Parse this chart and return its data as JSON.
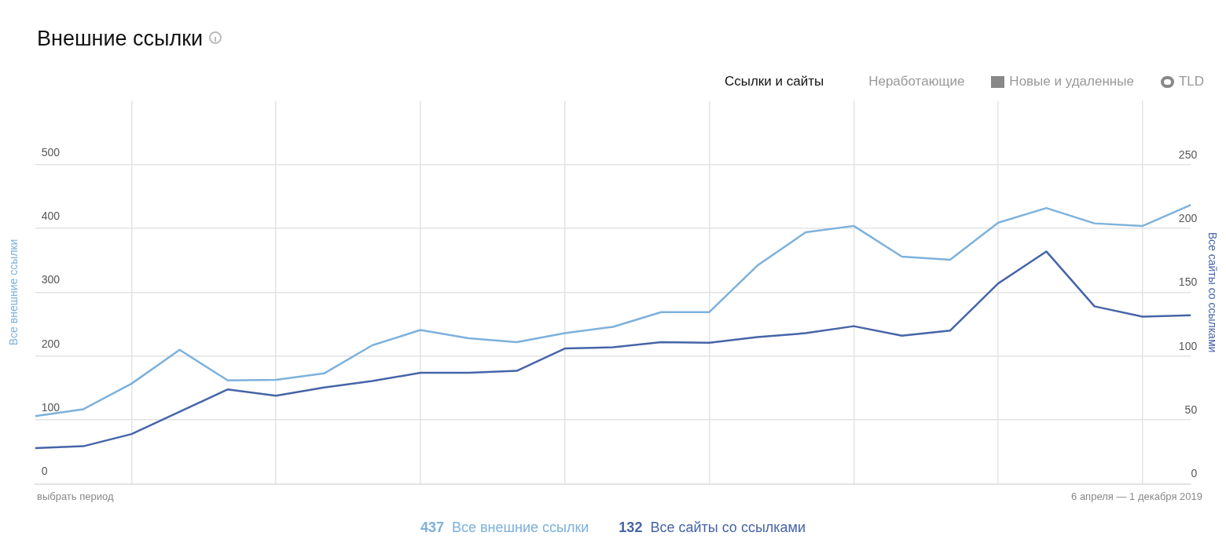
{
  "chart_data": {
    "type": "line",
    "title": "Внешние ссылки",
    "categories": [
      null,
      null,
      null,
      null,
      null,
      null,
      null,
      null,
      null,
      null,
      null,
      null,
      null,
      null,
      null,
      null,
      null,
      null,
      null,
      null,
      null,
      null,
      null,
      null,
      null
    ],
    "series": [
      {
        "name": "Все внешние ссылки",
        "color": "#7db1dc",
        "values": [
          106,
          117,
          157,
          210,
          162,
          163,
          173,
          217,
          241,
          228,
          222,
          236,
          246,
          269,
          269,
          342,
          394,
          404,
          356,
          351,
          409,
          432,
          408,
          404,
          437
        ]
      },
      {
        "name": "Все сайты со ссылками",
        "color": "#4665a8",
        "axis": "y2",
        "values": [
          28,
          29.5,
          39,
          56.5,
          74,
          69,
          75.5,
          80.5,
          87,
          87,
          88.5,
          106,
          107,
          111,
          110.5,
          115,
          118,
          123.5,
          116,
          120,
          157,
          182,
          139,
          131,
          132
        ]
      }
    ],
    "ylabel": "Все внешние ссылки",
    "y2label": "Все сайты со ссылками",
    "ylim": [
      0,
      600
    ],
    "yticks": [
      0,
      100,
      200,
      300,
      400,
      500
    ],
    "y2lim": [
      0,
      300
    ],
    "y2ticks": [
      0,
      50,
      100,
      150,
      200,
      250
    ],
    "grid": true,
    "legend": "bottom",
    "marker": "none",
    "line_style": "solid",
    "annotations": [
      "Ссылки и сайты",
      "Неработающие",
      "Новые и удаленные",
      "TLD",
      "выбрать период",
      "6 апреля — 1 декабря 2019",
      "437",
      "132"
    ]
  }
}
